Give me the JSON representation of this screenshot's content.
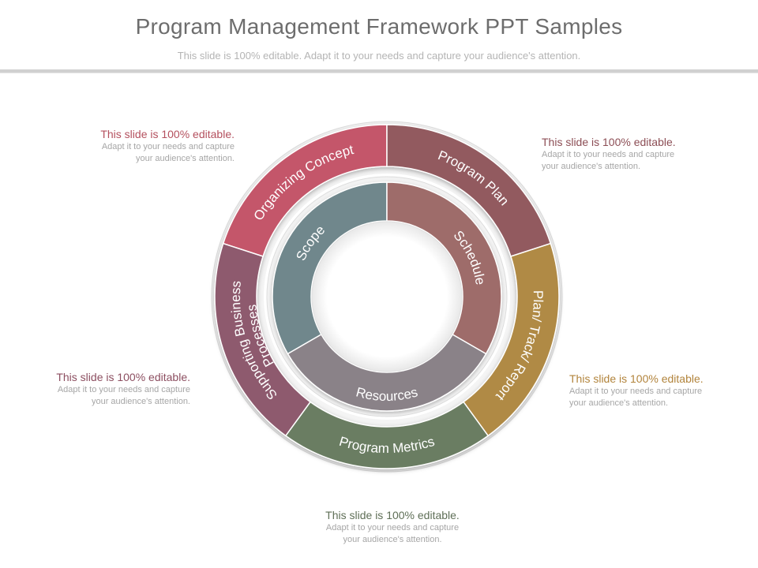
{
  "slide": {
    "title": "Program Management Framework PPT Samples",
    "subtitle": "This slide is 100% editable. Adapt it to your needs and capture your audience's attention."
  },
  "outer_ring": [
    {
      "label": "Organizing Concept",
      "color": "#c4566a"
    },
    {
      "label": "Program Plan",
      "color": "#925a5e"
    },
    {
      "label": "Plan/ Track/ Report",
      "color": "#b08a45"
    },
    {
      "label": "Program Metrics",
      "color": "#6b7d62"
    },
    {
      "label": "Supporting Business Processes",
      "line1": "Supporting Business",
      "line2": "Processes",
      "color": "#8e5a6e"
    }
  ],
  "inner_ring": [
    {
      "label": "Scope",
      "color": "#6f878c"
    },
    {
      "label": "Schedule",
      "color": "#9e6c6a"
    },
    {
      "label": "Resources",
      "color": "#8a8288"
    }
  ],
  "callouts": {
    "top_left": {
      "heading": "This slide is 100% editable.",
      "line1": "Adapt it to your needs and capture",
      "line2": "your audience's attention.",
      "color": "#b4505e"
    },
    "top_right": {
      "heading": "This slide is 100% editable.",
      "line1": "Adapt it to your needs and capture",
      "line2": "your audience's attention.",
      "color": "#8c4e55"
    },
    "middle_left": {
      "heading": "This slide is 100% editable.",
      "line1": "Adapt it to your needs and capture",
      "line2": "your audience's attention.",
      "color": "#8c4e60"
    },
    "middle_right": {
      "heading": "This slide is 100% editable.",
      "line1": "Adapt it to your needs and capture",
      "line2": "your audience's attention.",
      "color": "#b2843c"
    },
    "bottom": {
      "heading": "This slide is 100% editable.",
      "line1": "Adapt it to your needs and capture",
      "line2": "your audience's attention.",
      "color": "#5f6f57"
    }
  }
}
